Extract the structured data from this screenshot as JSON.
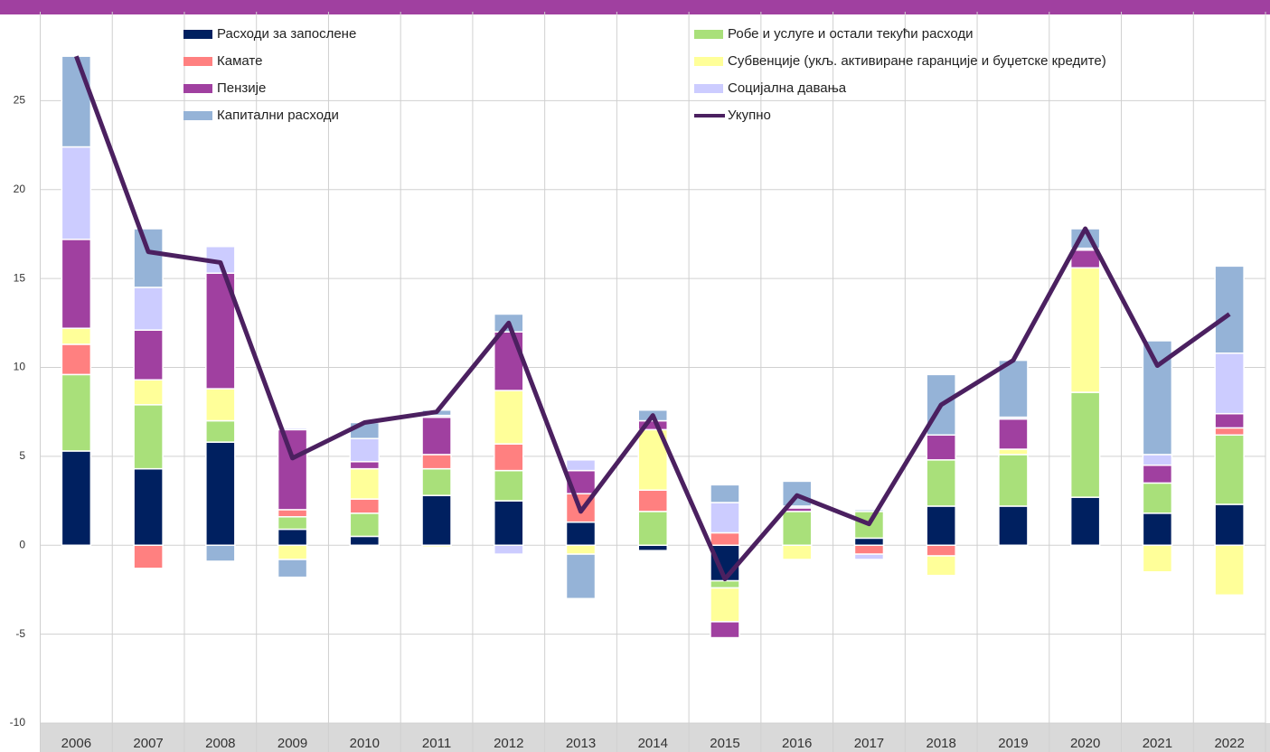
{
  "chart_data": {
    "type": "bar",
    "categories": [
      "2006",
      "2007",
      "2008",
      "2009",
      "2010",
      "2011",
      "2012",
      "2013",
      "2014",
      "2015",
      "2016",
      "2017",
      "2018",
      "2019",
      "2020",
      "2021",
      "2022"
    ],
    "series": [
      {
        "name": "Расходи за запослене",
        "color": "#002060",
        "values": [
          5.3,
          4.3,
          5.8,
          0.9,
          0.5,
          2.8,
          2.5,
          1.3,
          -0.3,
          -2.0,
          0,
          0.4,
          2.2,
          2.2,
          2.7,
          1.8,
          2.3
        ]
      },
      {
        "name": "Робе и услуге и остали текући расходи",
        "color": "#a9e07a",
        "values": [
          4.3,
          3.6,
          1.2,
          0.7,
          1.3,
          1.5,
          1.7,
          0,
          1.9,
          -0.4,
          1.9,
          1.5,
          2.6,
          2.9,
          5.9,
          1.7,
          3.9
        ]
      },
      {
        "name": "Камате",
        "color": "#ff8080",
        "values": [
          1.7,
          -1.3,
          0,
          0.4,
          0.8,
          0.8,
          1.5,
          1.6,
          1.2,
          0.7,
          0,
          -0.5,
          -0.6,
          0,
          0,
          0,
          0.4
        ]
      },
      {
        "name": "Субвенције (укљ. активиране гаранције и буџетске кредите)",
        "color": "#ffff99",
        "values": [
          0.9,
          1.4,
          1.8,
          -0.8,
          1.7,
          -0.1,
          3.0,
          -0.5,
          3.4,
          -1.9,
          -0.8,
          0,
          -1.1,
          0.3,
          7.0,
          -1.5,
          -2.8
        ]
      },
      {
        "name": "Пензије",
        "color": "#a040a0",
        "values": [
          5.0,
          2.8,
          6.5,
          4.5,
          0.4,
          2.1,
          3.3,
          1.3,
          0.5,
          -0.9,
          0.2,
          0,
          1.4,
          1.7,
          1.0,
          1.0,
          0.8
        ]
      },
      {
        "name": "Социјална давања",
        "color": "#ccccff",
        "values": [
          5.2,
          2.4,
          1.5,
          0.1,
          1.3,
          0.1,
          -0.5,
          0.6,
          0,
          1.7,
          0.1,
          -0.3,
          0,
          0.1,
          0.1,
          0.6,
          3.4
        ]
      },
      {
        "name": "Капитални расходи",
        "color": "#95b3d7",
        "values": [
          5.1,
          3.3,
          -0.9,
          -1.0,
          0.9,
          0.3,
          1.0,
          -2.5,
          0.6,
          1.0,
          1.4,
          0.1,
          3.4,
          3.2,
          1.1,
          6.4,
          4.9
        ]
      },
      {
        "name": "Укупно",
        "color": "#4b2060",
        "type": "line",
        "values": [
          27.5,
          16.5,
          15.9,
          4.9,
          6.9,
          7.5,
          12.5,
          1.9,
          7.3,
          -1.9,
          2.8,
          1.2,
          7.9,
          10.4,
          17.8,
          10.1,
          13.0
        ]
      }
    ],
    "ylim": [
      -10,
      30
    ],
    "yticks": [
      -10,
      -5,
      0,
      5,
      10,
      15,
      20,
      25
    ],
    "grid": true
  }
}
